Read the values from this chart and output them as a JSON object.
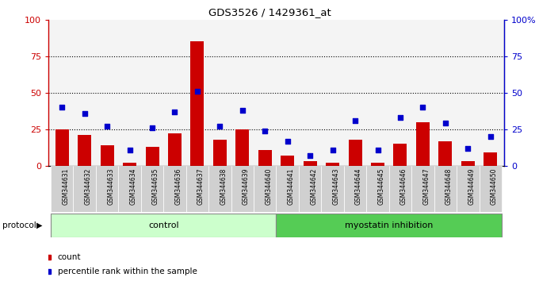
{
  "title": "GDS3526 / 1429361_at",
  "samples": [
    "GSM344631",
    "GSM344632",
    "GSM344633",
    "GSM344634",
    "GSM344635",
    "GSM344636",
    "GSM344637",
    "GSM344638",
    "GSM344639",
    "GSM344640",
    "GSM344641",
    "GSM344642",
    "GSM344643",
    "GSM344644",
    "GSM344645",
    "GSM344646",
    "GSM344647",
    "GSM344648",
    "GSM344649",
    "GSM344650"
  ],
  "count_values": [
    25,
    21,
    14,
    2,
    13,
    22,
    85,
    18,
    25,
    11,
    7,
    3,
    2,
    18,
    2,
    15,
    30,
    17,
    3,
    9
  ],
  "percentile_values": [
    40,
    36,
    27,
    11,
    26,
    37,
    51,
    27,
    38,
    24,
    17,
    7,
    11,
    31,
    11,
    33,
    40,
    29,
    12,
    20
  ],
  "control_count": 10,
  "myostatin_count": 10,
  "bar_color": "#cc0000",
  "dot_color": "#0000cc",
  "control_color": "#ccffcc",
  "myostatin_color": "#55cc55",
  "background_color": "#ffffff",
  "ylim": [
    0,
    100
  ],
  "yticks": [
    0,
    25,
    50,
    75,
    100
  ],
  "ytick_labels_left": [
    "0",
    "25",
    "50",
    "75",
    "100"
  ],
  "ytick_labels_right": [
    "0",
    "25",
    "50",
    "75",
    "100%"
  ],
  "legend_count_label": "count",
  "legend_pct_label": "percentile rank within the sample",
  "protocol_label": "protocol",
  "control_label": "control",
  "myostatin_label": "myostatin inhibition"
}
